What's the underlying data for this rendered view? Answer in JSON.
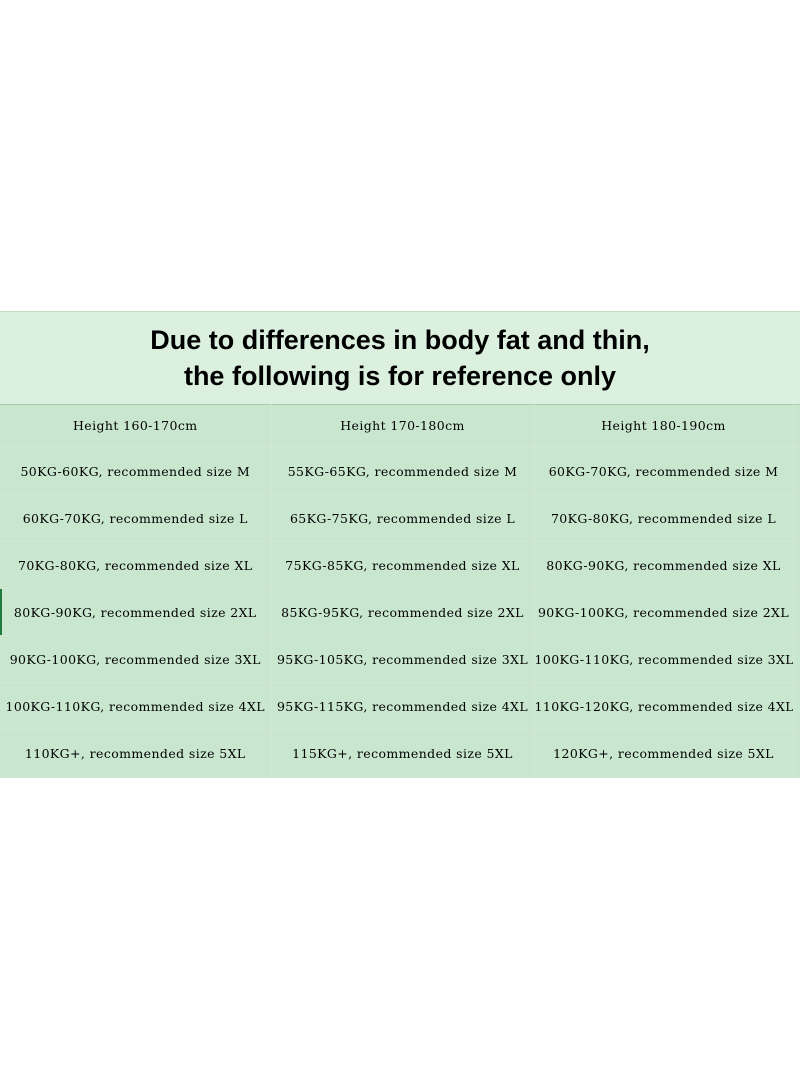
{
  "title": {
    "line1": "Due to differences in body fat and thin,",
    "line2": "the following is for reference only"
  },
  "colors": {
    "background": "#ffffff",
    "title_band": "#dcf0df",
    "table_fill": "#c9e7cf",
    "grid_line": "#d2e8d5",
    "selected_row_marker": "#1f7a3d"
  },
  "table": {
    "headers": [
      "Height 160-170cm",
      "Height 170-180cm",
      "Height 180-190cm"
    ],
    "rows": [
      [
        "50KG-60KG, recommended size M",
        "55KG-65KG, recommended size M",
        "60KG-70KG, recommended size M"
      ],
      [
        "60KG-70KG, recommended size L",
        "65KG-75KG, recommended size L",
        "70KG-80KG, recommended size L"
      ],
      [
        "70KG-80KG, recommended size XL",
        "75KG-85KG, recommended size XL",
        "80KG-90KG, recommended size XL"
      ],
      [
        "80KG-90KG, recommended size 2XL",
        "85KG-95KG, recommended size 2XL",
        "90KG-100KG, recommended size 2XL"
      ],
      [
        "90KG-100KG, recommended size 3XL",
        "95KG-105KG, recommended size 3XL",
        "100KG-110KG, recommended size 3XL"
      ],
      [
        "100KG-110KG, recommended size 4XL",
        "95KG-115KG, recommended size 4XL",
        "110KG-120KG, recommended size 4XL"
      ],
      [
        "110KG+, recommended size 5XL",
        "115KG+, recommended size 5XL",
        "120KG+, recommended size 5XL"
      ]
    ]
  }
}
